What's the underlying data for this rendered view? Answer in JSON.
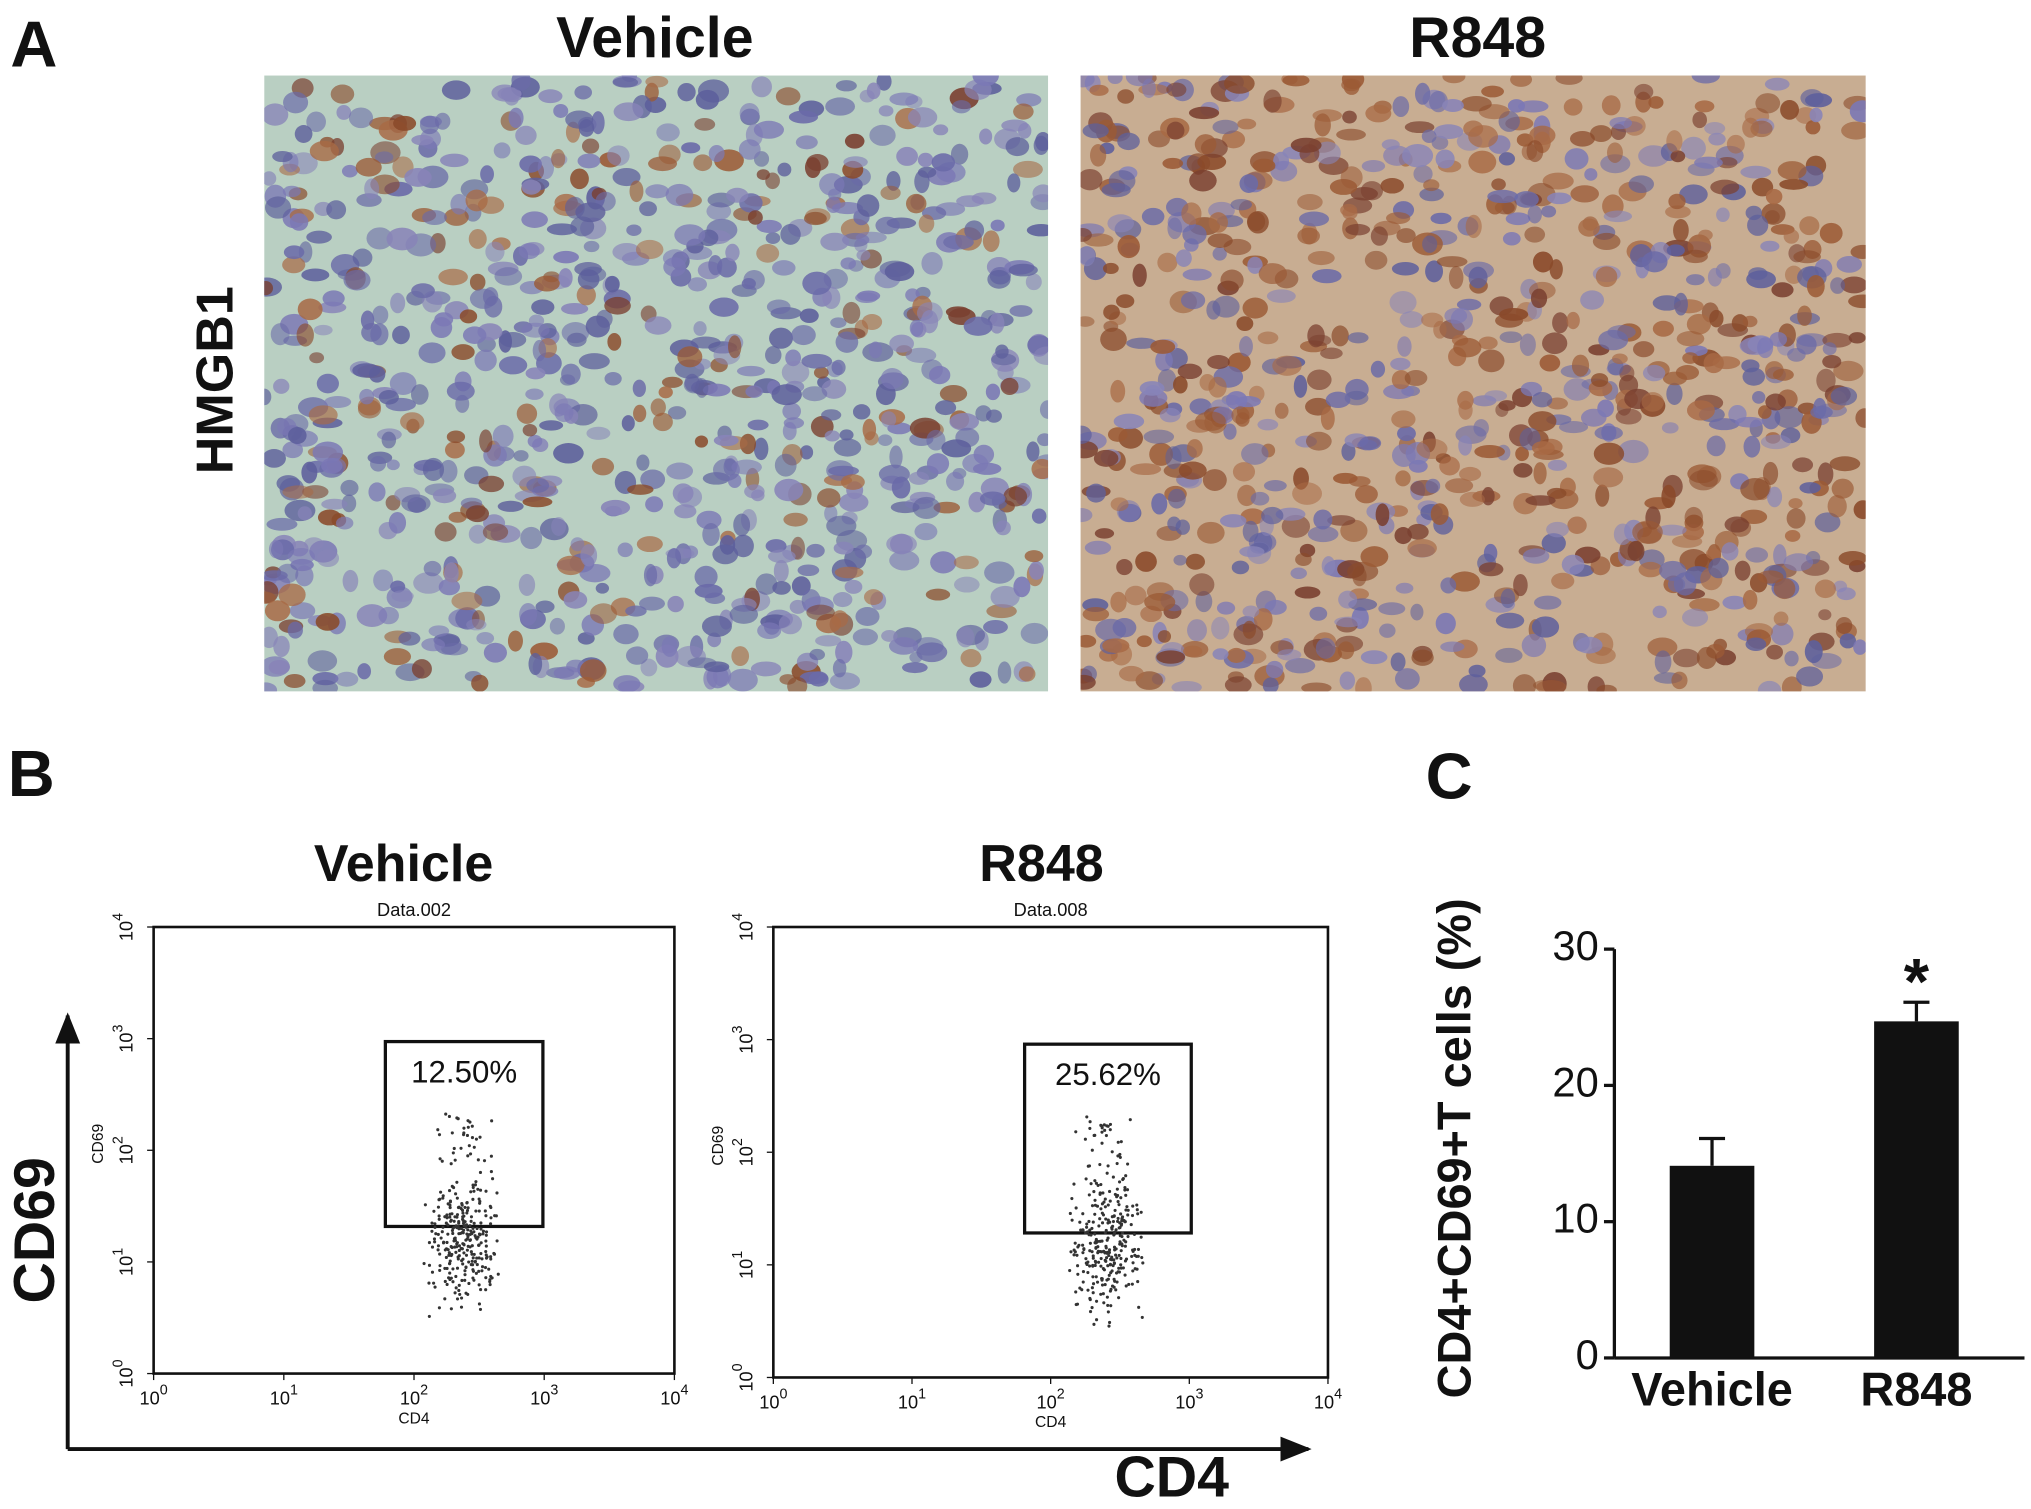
{
  "panel_a": {
    "label": "A",
    "columns": [
      "Vehicle",
      "R848"
    ],
    "row_label": "HMGB1"
  },
  "panel_b": {
    "label": "B",
    "x_axis_label": "CD4",
    "y_axis_label": "CD69",
    "tick_base": "10",
    "tick_exponents": [
      "0",
      "1",
      "2",
      "3",
      "4"
    ],
    "plots": [
      {
        "title": "Vehicle",
        "file": "Data.002",
        "gate_label": "12.50%",
        "x_label": "CD4",
        "y_label": "CD69"
      },
      {
        "title": "R848",
        "file": "Data.008",
        "gate_label": "25.62%",
        "x_label": "CD4",
        "y_label": "CD69"
      }
    ]
  },
  "chart_data": {
    "type": "bar",
    "panel_label": "C",
    "y_label": "CD4+CD69+T cells (%)",
    "categories": [
      "Vehicle",
      "R848"
    ],
    "values": [
      14.1,
      24.7
    ],
    "errors": [
      2.0,
      1.4
    ],
    "significance": [
      null,
      "*"
    ],
    "color": "#111111",
    "ylim": [
      0,
      30
    ],
    "yticks": [
      0,
      10,
      20,
      30
    ]
  }
}
